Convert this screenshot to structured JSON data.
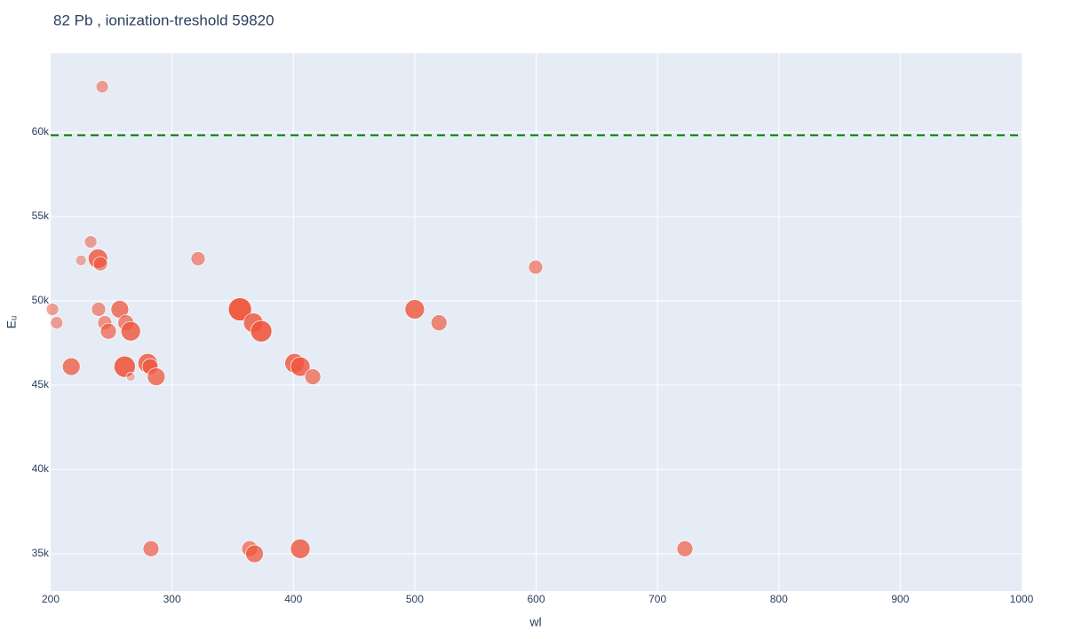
{
  "chart_data": {
    "type": "scatter",
    "title": "82 Pb , ionization-treshold 59820",
    "x_label": "wl",
    "y_label": "Eᵤ",
    "color": "#ef553b",
    "grid": true,
    "threshold": {
      "value": 59820,
      "color": "#008000"
    },
    "xlim": [
      200,
      1000
    ],
    "xticks": [
      200,
      300,
      400,
      500,
      600,
      700,
      800,
      900,
      1000
    ],
    "ylim": [
      32790,
      64684
    ],
    "yticks": [
      {
        "value": 35000,
        "label": "35k"
      },
      {
        "value": 40000,
        "label": "40k"
      },
      {
        "value": 45000,
        "label": "45k"
      },
      {
        "value": 50000,
        "label": "50k"
      },
      {
        "value": 55000,
        "label": "55k"
      },
      {
        "value": 60000,
        "label": "60k"
      }
    ],
    "x": [
      242.5,
      233,
      225,
      239,
      241,
      321.5,
      599.6,
      201.5,
      205,
      239.5,
      257,
      244.6,
      262,
      247.6,
      266,
      356,
      367,
      373.5,
      500,
      520,
      217,
      261,
      266,
      280,
      282,
      287,
      401,
      405.7,
      416,
      282.7,
      364,
      368,
      405.7,
      722.6
    ],
    "values": [
      62700,
      53500,
      52400,
      52500,
      52200,
      52500,
      52000,
      49500,
      48700,
      49500,
      49500,
      48700,
      48700,
      48200,
      48200,
      49500,
      48700,
      48200,
      49500,
      48700,
      46100,
      46100,
      45500,
      46300,
      46100,
      45500,
      46300,
      46100,
      45500,
      35300,
      35300,
      35000,
      35300,
      35300
    ],
    "sizes": [
      7,
      7,
      6,
      11,
      8,
      8,
      8,
      7,
      7,
      8,
      10,
      8,
      9,
      9,
      11,
      13,
      11,
      12,
      11,
      9,
      10,
      12,
      5,
      11,
      9,
      10,
      11,
      11,
      9,
      9,
      9,
      10,
      11,
      9
    ]
  }
}
